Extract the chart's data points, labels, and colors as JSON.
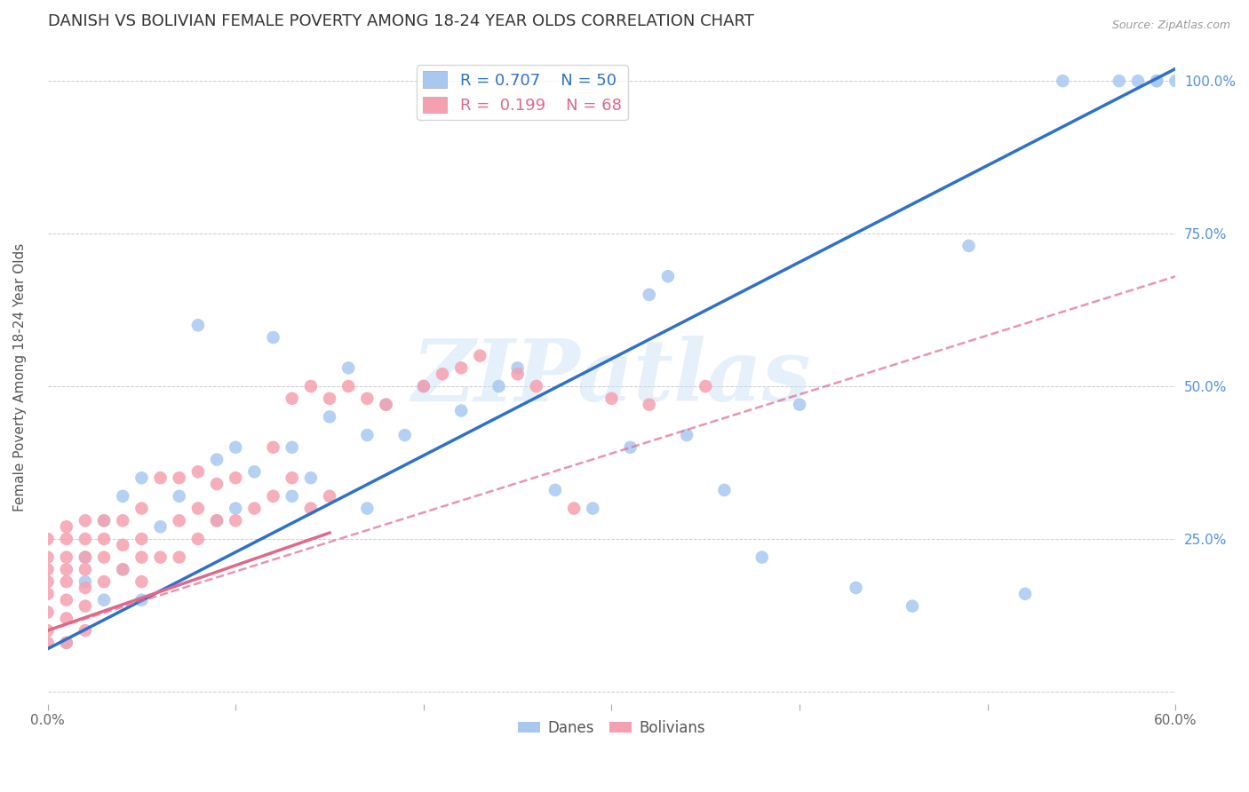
{
  "title": "DANISH VS BOLIVIAN FEMALE POVERTY AMONG 18-24 YEAR OLDS CORRELATION CHART",
  "source": "Source: ZipAtlas.com",
  "ylabel": "Female Poverty Among 18-24 Year Olds",
  "xlim": [
    0.0,
    0.6
  ],
  "ylim": [
    -0.02,
    1.05
  ],
  "xticks": [
    0.0,
    0.1,
    0.2,
    0.3,
    0.4,
    0.5,
    0.6
  ],
  "xticklabels": [
    "0.0%",
    "",
    "",
    "",
    "",
    "",
    "60.0%"
  ],
  "yticks": [
    0.0,
    0.25,
    0.5,
    0.75,
    1.0
  ],
  "yticklabels": [
    "",
    "25.0%",
    "50.0%",
    "75.0%",
    "100.0%"
  ],
  "legend_R_danes": "0.707",
  "legend_N_danes": "50",
  "legend_R_bolivians": "0.199",
  "legend_N_bolivians": "68",
  "danes_color": "#a8c8f0",
  "bolivians_color": "#f5a0b0",
  "danes_line_color": "#3070c8",
  "bolivians_line_color": "#e06888",
  "danes_line_style": "solid",
  "bolivians_line_style": "dashed",
  "watermark": "ZIPatlas",
  "danes_x": [
    0.01,
    0.02,
    0.02,
    0.03,
    0.03,
    0.04,
    0.04,
    0.05,
    0.05,
    0.06,
    0.07,
    0.08,
    0.09,
    0.09,
    0.1,
    0.1,
    0.11,
    0.12,
    0.13,
    0.13,
    0.14,
    0.15,
    0.16,
    0.17,
    0.17,
    0.18,
    0.19,
    0.2,
    0.22,
    0.24,
    0.25,
    0.27,
    0.29,
    0.31,
    0.32,
    0.33,
    0.34,
    0.36,
    0.38,
    0.4,
    0.43,
    0.46,
    0.49,
    0.52,
    0.54,
    0.57,
    0.58,
    0.59,
    0.59,
    0.6
  ],
  "danes_y": [
    0.08,
    0.18,
    0.22,
    0.15,
    0.28,
    0.2,
    0.32,
    0.15,
    0.35,
    0.27,
    0.32,
    0.6,
    0.28,
    0.38,
    0.3,
    0.4,
    0.36,
    0.58,
    0.32,
    0.4,
    0.35,
    0.45,
    0.53,
    0.3,
    0.42,
    0.47,
    0.42,
    0.5,
    0.46,
    0.5,
    0.53,
    0.33,
    0.3,
    0.4,
    0.65,
    0.68,
    0.42,
    0.33,
    0.22,
    0.47,
    0.17,
    0.14,
    0.73,
    0.16,
    1.0,
    1.0,
    1.0,
    1.0,
    1.0,
    1.0
  ],
  "bolivians_x": [
    0.0,
    0.0,
    0.0,
    0.0,
    0.0,
    0.0,
    0.0,
    0.0,
    0.01,
    0.01,
    0.01,
    0.01,
    0.01,
    0.01,
    0.01,
    0.01,
    0.02,
    0.02,
    0.02,
    0.02,
    0.02,
    0.02,
    0.02,
    0.03,
    0.03,
    0.03,
    0.03,
    0.04,
    0.04,
    0.04,
    0.05,
    0.05,
    0.05,
    0.05,
    0.06,
    0.06,
    0.07,
    0.07,
    0.07,
    0.08,
    0.08,
    0.08,
    0.09,
    0.09,
    0.1,
    0.1,
    0.11,
    0.12,
    0.12,
    0.13,
    0.13,
    0.14,
    0.14,
    0.15,
    0.15,
    0.16,
    0.17,
    0.18,
    0.2,
    0.21,
    0.22,
    0.23,
    0.25,
    0.26,
    0.28,
    0.3,
    0.32,
    0.35
  ],
  "bolivians_y": [
    0.08,
    0.1,
    0.13,
    0.16,
    0.18,
    0.2,
    0.22,
    0.25,
    0.08,
    0.12,
    0.15,
    0.18,
    0.2,
    0.22,
    0.25,
    0.27,
    0.1,
    0.14,
    0.17,
    0.2,
    0.22,
    0.25,
    0.28,
    0.18,
    0.22,
    0.25,
    0.28,
    0.2,
    0.24,
    0.28,
    0.18,
    0.22,
    0.25,
    0.3,
    0.22,
    0.35,
    0.22,
    0.28,
    0.35,
    0.25,
    0.3,
    0.36,
    0.28,
    0.34,
    0.28,
    0.35,
    0.3,
    0.32,
    0.4,
    0.35,
    0.48,
    0.3,
    0.5,
    0.32,
    0.48,
    0.5,
    0.48,
    0.47,
    0.5,
    0.52,
    0.53,
    0.55,
    0.52,
    0.5,
    0.3,
    0.48,
    0.47,
    0.5
  ],
  "danes_line_x": [
    0.0,
    0.6
  ],
  "danes_line_y": [
    0.07,
    1.02
  ],
  "bolivians_line_x": [
    0.0,
    0.6
  ],
  "bolivians_line_y": [
    0.1,
    0.68
  ],
  "bolivians_solid_line_x": [
    0.0,
    0.15
  ],
  "bolivians_solid_line_y": [
    0.1,
    0.26
  ],
  "background_color": "#ffffff",
  "grid_color": "#cccccc",
  "title_fontsize": 13,
  "axis_label_fontsize": 11,
  "tick_fontsize": 11,
  "tick_color_right": "#5090e0",
  "scatter_size": 110
}
